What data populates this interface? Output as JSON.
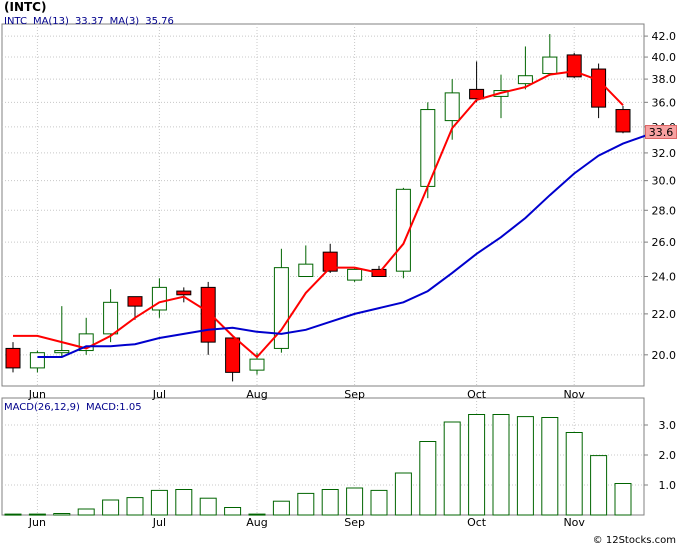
{
  "header": {
    "ticker": "(INTC)",
    "legend": {
      "symbol": "INTC",
      "ma13_label": "MA(13)",
      "ma13_value": "33.37",
      "ma3_label": "MA(3)",
      "ma3_value": "35.76"
    },
    "macd_legend": {
      "label": "MACD(26,12,9)",
      "value_label": "MACD:1.05"
    },
    "last_price": "33.6",
    "watermark": "© 12Stocks.com"
  },
  "colors": {
    "grid": "#c8c8c8",
    "up_candle": "#006400",
    "down_candle": "#ff0000",
    "ma13": "#0000cd",
    "ma3": "#ff0000",
    "macd_bar": "#006400"
  },
  "chart_data": [
    {
      "type": "candlestick",
      "x_labels": [
        "Jun",
        "Jul",
        "Aug",
        "Sep",
        "Oct",
        "Nov"
      ],
      "x_label_index": [
        1,
        6,
        10,
        14,
        19,
        23
      ],
      "yticks": [
        "20.0",
        "22.0",
        "24.0",
        "26.0",
        "28.0",
        "30.0",
        "32.0",
        "34.0",
        "36.0",
        "38.0",
        "40.0",
        "42.0"
      ],
      "ylim": [
        18.6,
        43.2
      ],
      "log_scale": true,
      "grid": true,
      "candles": [
        {
          "o": 20.3,
          "h": 20.6,
          "l": 19.2,
          "c": 19.4
        },
        {
          "o": 19.4,
          "h": 20.2,
          "l": 19.2,
          "c": 20.1
        },
        {
          "o": 20.1,
          "h": 22.4,
          "l": 19.9,
          "c": 20.2
        },
        {
          "o": 20.2,
          "h": 21.8,
          "l": 20.0,
          "c": 21.0
        },
        {
          "o": 21.0,
          "h": 23.3,
          "l": 20.6,
          "c": 22.6
        },
        {
          "o": 22.9,
          "h": 22.9,
          "l": 21.7,
          "c": 22.4
        },
        {
          "o": 22.2,
          "h": 23.9,
          "l": 21.8,
          "c": 23.4
        },
        {
          "o": 23.2,
          "h": 23.4,
          "l": 22.6,
          "c": 23.0
        },
        {
          "o": 23.4,
          "h": 23.7,
          "l": 20.0,
          "c": 20.6
        },
        {
          "o": 20.8,
          "h": 20.8,
          "l": 18.8,
          "c": 19.2
        },
        {
          "o": 19.3,
          "h": 20.1,
          "l": 19.1,
          "c": 19.8
        },
        {
          "o": 20.3,
          "h": 25.6,
          "l": 20.1,
          "c": 24.5
        },
        {
          "o": 24.0,
          "h": 25.8,
          "l": 24.0,
          "c": 24.7
        },
        {
          "o": 25.4,
          "h": 25.9,
          "l": 24.2,
          "c": 24.3
        },
        {
          "o": 23.8,
          "h": 24.5,
          "l": 23.7,
          "c": 24.4
        },
        {
          "o": 24.4,
          "h": 24.6,
          "l": 24.0,
          "c": 24.0
        },
        {
          "o": 24.3,
          "h": 29.5,
          "l": 23.9,
          "c": 29.4
        },
        {
          "o": 29.6,
          "h": 36.0,
          "l": 28.8,
          "c": 35.4
        },
        {
          "o": 34.5,
          "h": 38.0,
          "l": 33.0,
          "c": 36.8
        },
        {
          "o": 37.1,
          "h": 39.6,
          "l": 36.0,
          "c": 36.3
        },
        {
          "o": 36.5,
          "h": 38.4,
          "l": 34.7,
          "c": 37.0
        },
        {
          "o": 37.6,
          "h": 41.0,
          "l": 37.1,
          "c": 38.3
        },
        {
          "o": 38.5,
          "h": 42.2,
          "l": 38.3,
          "c": 40.0
        },
        {
          "o": 40.2,
          "h": 40.4,
          "l": 38.1,
          "c": 38.2
        },
        {
          "o": 38.9,
          "h": 39.4,
          "l": 34.7,
          "c": 35.6
        },
        {
          "o": 35.4,
          "h": 35.7,
          "l": 33.5,
          "c": 33.6
        }
      ],
      "ma13": [
        19.9,
        19.9,
        20.4,
        20.4,
        20.5,
        20.8,
        21.0,
        21.2,
        21.3,
        21.1,
        21.0,
        21.2,
        21.6,
        22.0,
        22.3,
        22.6,
        23.2,
        24.2,
        25.3,
        26.3,
        27.5,
        29.0,
        30.5,
        31.8,
        32.7,
        33.37
      ],
      "ma13_start_index": 1,
      "ma3": [
        20.9,
        20.9,
        20.6,
        20.3,
        20.9,
        21.8,
        22.6,
        22.9,
        22.1,
        20.9,
        19.9,
        21.2,
        23.1,
        24.5,
        24.5,
        24.2,
        25.9,
        29.6,
        33.9,
        36.2,
        36.8,
        37.3,
        38.4,
        38.7,
        37.9,
        35.76
      ]
    },
    {
      "type": "bar",
      "title": "MACD(26,12,9)",
      "yticks": [
        "1.0",
        "2.0",
        "3.0"
      ],
      "ylim": [
        0,
        3.9
      ],
      "grid": true,
      "values": [
        0.03,
        0.03,
        0.05,
        0.2,
        0.5,
        0.58,
        0.82,
        0.85,
        0.56,
        0.25,
        0.03,
        0.46,
        0.72,
        0.85,
        0.9,
        0.82,
        1.4,
        2.45,
        3.1,
        3.35,
        3.35,
        3.28,
        3.25,
        2.75,
        1.98,
        1.05
      ]
    }
  ]
}
